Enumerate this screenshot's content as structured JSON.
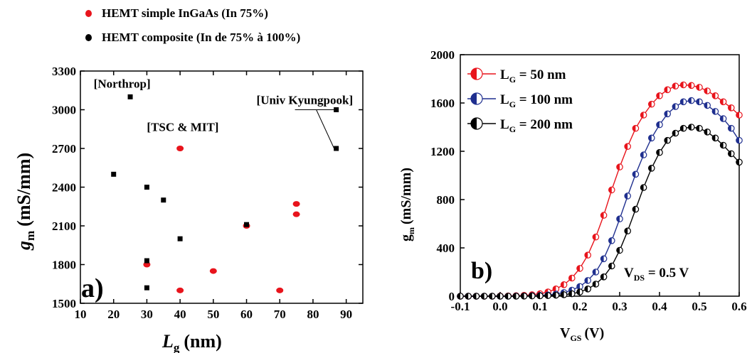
{
  "chart_data": [
    {
      "type": "scatter",
      "panel_label": "a)",
      "xlabel": "L",
      "xlabel_sub": "g",
      "xlabel_unit": "(nm)",
      "ylabel": "g",
      "ylabel_sub": "m",
      "ylabel_unit": "(mS/mm)",
      "xlim": [
        10,
        95
      ],
      "ylim": [
        1500,
        3300
      ],
      "xticks": [
        10,
        20,
        30,
        40,
        50,
        60,
        70,
        80,
        90
      ],
      "yticks": [
        1500,
        1800,
        2100,
        2400,
        2700,
        3000,
        3300
      ],
      "series": [
        {
          "name": "HEMT simple InGaAs (In 75%)",
          "color": "#e8141c",
          "marker": "ellipse",
          "points": [
            [
              30,
              1800
            ],
            [
              40,
              1600
            ],
            [
              40,
              2700
            ],
            [
              50,
              1750
            ],
            [
              60,
              2100
            ],
            [
              70,
              1600
            ],
            [
              75,
              2270
            ],
            [
              75,
              2190
            ]
          ]
        },
        {
          "name": "HEMT  composite (In de 75% à 100%)",
          "color": "#000000",
          "marker": "square",
          "points": [
            [
              20,
              2500
            ],
            [
              25,
              3100
            ],
            [
              30,
              2400
            ],
            [
              30,
              1830
            ],
            [
              30,
              1620
            ],
            [
              35,
              2300
            ],
            [
              40,
              2000
            ],
            [
              60,
              2110
            ],
            [
              87,
              3000
            ],
            [
              87,
              2700
            ]
          ]
        }
      ],
      "annotations": [
        {
          "text": "[Northrop]",
          "x": 14,
          "y": 3170
        },
        {
          "text": "[TSC & MIT]",
          "x": 30,
          "y": 2835
        },
        {
          "text": "[Univ Kyungpook]",
          "x": 63,
          "y": 3045
        }
      ],
      "callout_from": [
        81,
        3000
      ],
      "callout_targets": [
        [
          87,
          3000
        ],
        [
          87,
          2700
        ]
      ]
    },
    {
      "type": "line",
      "panel_label": "b)",
      "xlabel": "V",
      "xlabel_sub": "GS",
      "xlabel_unit": "(V)",
      "ylabel": "g",
      "ylabel_sub": "m",
      "ylabel_unit": "(mS/mm)",
      "xlim": [
        -0.1,
        0.6
      ],
      "ylim": [
        0,
        2000
      ],
      "xticks": [
        "-0.1",
        "0.0",
        "0.1",
        "0.2",
        "0.3",
        "0.4",
        "0.5",
        "0.6"
      ],
      "yticks": [
        "0",
        "400",
        "800",
        "1200",
        "1600",
        "2000"
      ],
      "annotation": {
        "text": "V",
        "sub": "DS",
        "rest": " = 0.5 V"
      },
      "x_step": 0.02,
      "series": [
        {
          "name": "L",
          "name_sub": "G",
          "name_rest": " = 50 nm",
          "color": "#e8141c",
          "x_start": -0.1,
          "values": [
            0,
            0,
            0,
            0,
            0,
            1,
            2,
            4,
            7,
            12,
            20,
            35,
            60,
            95,
            150,
            230,
            340,
            490,
            670,
            880,
            1070,
            1240,
            1390,
            1500,
            1590,
            1660,
            1710,
            1740,
            1750,
            1745,
            1730,
            1700,
            1660,
            1610,
            1560,
            1500
          ]
        },
        {
          "name": "L",
          "name_sub": "G",
          "name_rest": " = 100 nm",
          "color": "#1f2f8f",
          "x_start": -0.1,
          "values": [
            0,
            0,
            0,
            0,
            0,
            0,
            0,
            1,
            2,
            4,
            6,
            10,
            17,
            30,
            50,
            80,
            130,
            200,
            310,
            460,
            640,
            830,
            1010,
            1170,
            1310,
            1420,
            1510,
            1570,
            1610,
            1620,
            1610,
            1580,
            1530,
            1470,
            1390,
            1290
          ]
        },
        {
          "name": "L",
          "name_sub": "G",
          "name_rest": " = 200 nm",
          "color": "#000000",
          "x_start": -0.1,
          "values": [
            0,
            0,
            0,
            0,
            0,
            0,
            0,
            0,
            1,
            2,
            3,
            5,
            8,
            12,
            20,
            35,
            60,
            100,
            160,
            250,
            380,
            540,
            720,
            900,
            1060,
            1190,
            1290,
            1350,
            1390,
            1400,
            1390,
            1360,
            1310,
            1250,
            1180,
            1110
          ]
        }
      ]
    }
  ]
}
